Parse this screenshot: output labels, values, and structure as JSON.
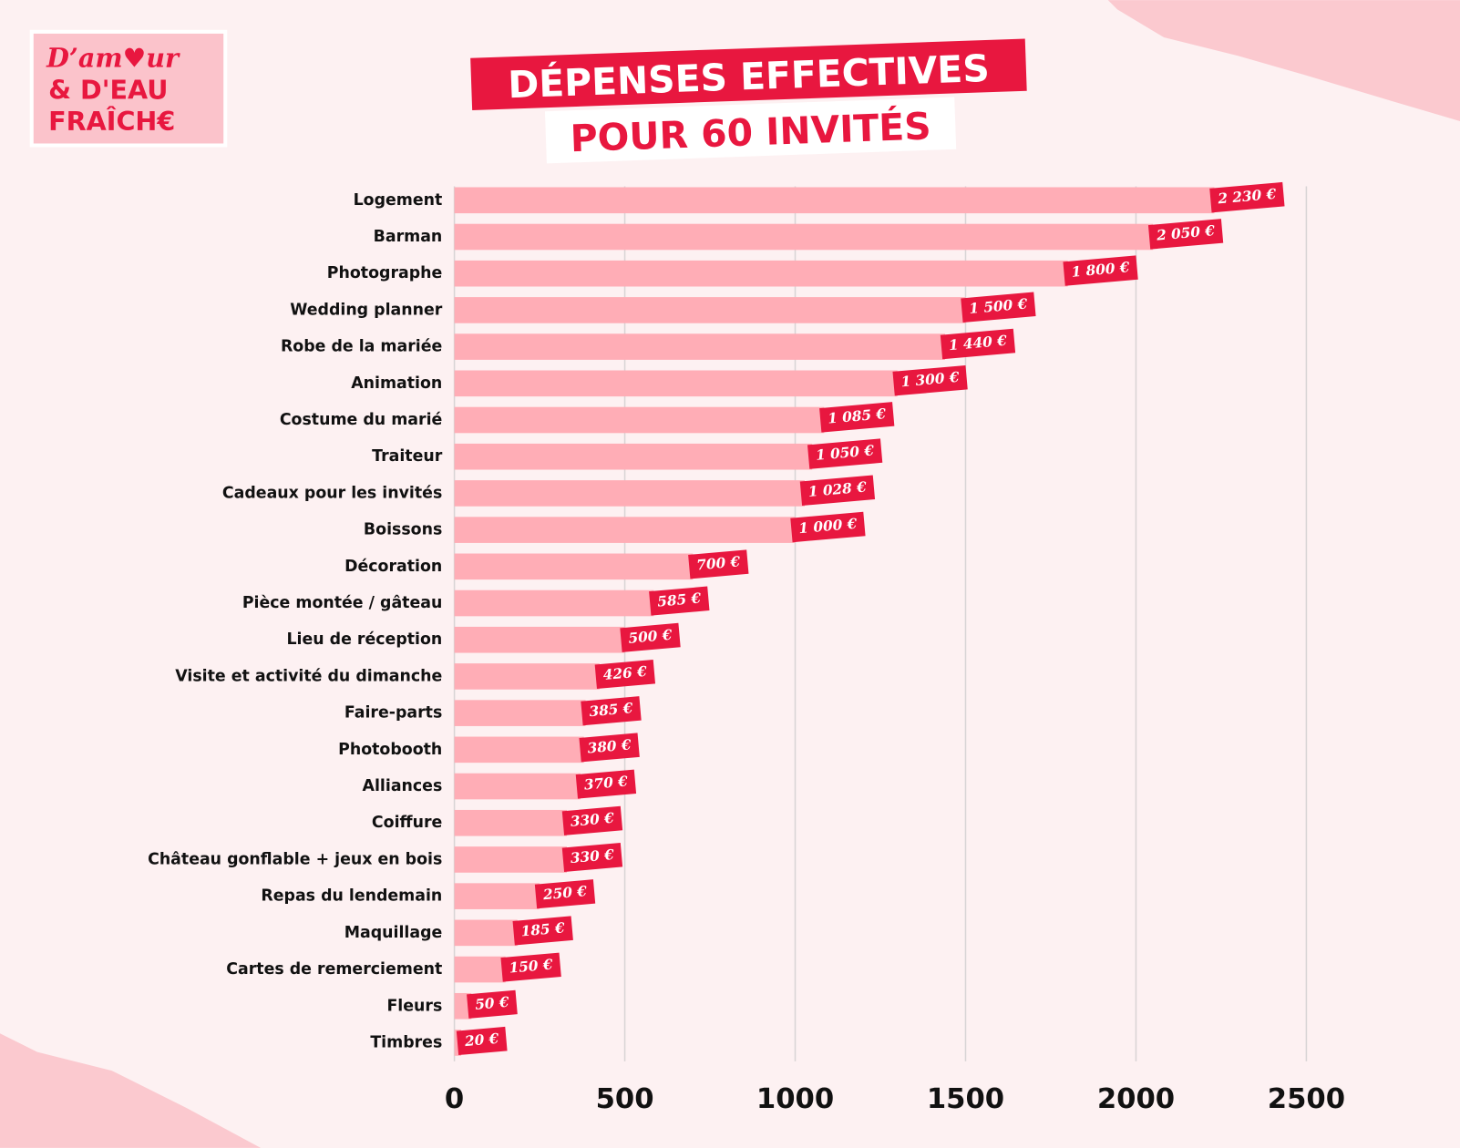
{
  "logo": [
    "D’am♥ur",
    "& D'EAU",
    "FRAÎCH€"
  ],
  "chart_data": {
    "type": "bar",
    "orientation": "horizontal",
    "title": "DÉPENSES EFFECTIVES",
    "subtitle": "POUR 60 INVITÉS",
    "categories": [
      "Logement",
      "Barman",
      "Photographe",
      "Wedding planner",
      "Robe de la mariée",
      "Animation",
      "Costume du marié",
      "Traiteur",
      "Cadeaux pour les invités",
      "Boissons",
      "Décoration",
      "Pièce montée / gâteau",
      "Lieu de réception",
      "Visite et activité du dimanche",
      "Faire-parts",
      "Photobooth",
      "Alliances",
      "Coiffure",
      "Château gonflable + jeux en bois",
      "Repas du lendemain",
      "Maquillage",
      "Cartes de remerciement",
      "Fleurs",
      "Timbres"
    ],
    "values": [
      2230,
      2050,
      1800,
      1500,
      1440,
      1300,
      1085,
      1050,
      1028,
      1000,
      700,
      585,
      500,
      426,
      385,
      380,
      370,
      330,
      330,
      250,
      185,
      150,
      50,
      20
    ],
    "value_labels": [
      "2 230 €",
      "2 050 €",
      "1 800 €",
      "1 500 €",
      "1 440 €",
      "1 300 €",
      "1 085 €",
      "1 050 €",
      "1 028 €",
      "1 000 €",
      "700 €",
      "585 €",
      "500 €",
      "426 €",
      "385 €",
      "380 €",
      "370 €",
      "330 €",
      "330 €",
      "250 €",
      "185 €",
      "150 €",
      "50 €",
      "20 €"
    ],
    "color": "#ffadb6",
    "label_color": "#e8173f",
    "xlim": [
      0,
      2500
    ],
    "xticks": [
      0,
      500,
      1000,
      1500,
      2000,
      2500
    ],
    "grid": true
  }
}
